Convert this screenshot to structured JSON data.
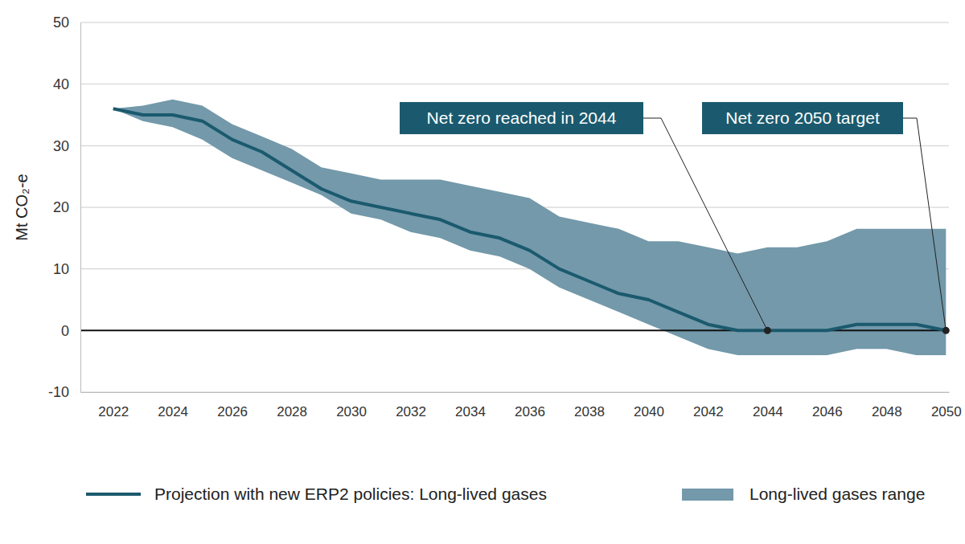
{
  "chart_data": {
    "type": "line",
    "y_label": "Mt CO₂-e",
    "x": [
      2022,
      2023,
      2024,
      2025,
      2026,
      2027,
      2028,
      2029,
      2030,
      2031,
      2032,
      2033,
      2034,
      2035,
      2036,
      2037,
      2038,
      2039,
      2040,
      2041,
      2042,
      2043,
      2044,
      2045,
      2046,
      2047,
      2048,
      2049,
      2050
    ],
    "series": [
      {
        "name": "Projection with new ERP2 policies: Long-lived gases",
        "type": "line",
        "color": "#1b5a6e",
        "values": [
          36,
          35,
          35,
          34,
          31,
          29,
          26,
          23,
          21,
          20,
          19,
          18,
          16,
          15,
          13,
          10,
          8,
          6,
          5,
          3,
          1,
          0,
          0,
          0,
          0,
          1,
          1,
          1,
          0
        ]
      },
      {
        "name": "Long-lived gases range",
        "type": "area",
        "color": "#7399aa",
        "upper": [
          36,
          36.5,
          37.5,
          36.5,
          33.5,
          31.5,
          29.5,
          26.5,
          25.5,
          24.5,
          24.5,
          24.5,
          23.5,
          22.5,
          21.5,
          18.5,
          17.5,
          16.5,
          14.5,
          14.5,
          13.5,
          12.5,
          13.5,
          13.5,
          14.5,
          16.5,
          16.5,
          16.5,
          16.5
        ],
        "lower": [
          36,
          34,
          33,
          31,
          28,
          26,
          24,
          22,
          19,
          18,
          16,
          15,
          13,
          12,
          10,
          7,
          5,
          3,
          1,
          -1,
          -3,
          -4,
          -4,
          -4,
          -4,
          -3,
          -3,
          -4,
          -4
        ]
      }
    ],
    "annotations": [
      {
        "text": "Net zero reached in 2044",
        "x": 2044,
        "y": 0
      },
      {
        "text": "Net zero 2050 target",
        "x": 2050,
        "y": 0
      }
    ],
    "xlim": [
      2020.9,
      2050.1
    ],
    "xticks": [
      2022,
      2024,
      2026,
      2028,
      2030,
      2032,
      2034,
      2036,
      2038,
      2040,
      2042,
      2044,
      2046,
      2048,
      2050
    ],
    "ylim": [
      -10,
      50
    ],
    "yticks": [
      -10,
      0,
      10,
      20,
      30,
      40,
      50
    ],
    "grid": true,
    "legend": "bottom"
  }
}
